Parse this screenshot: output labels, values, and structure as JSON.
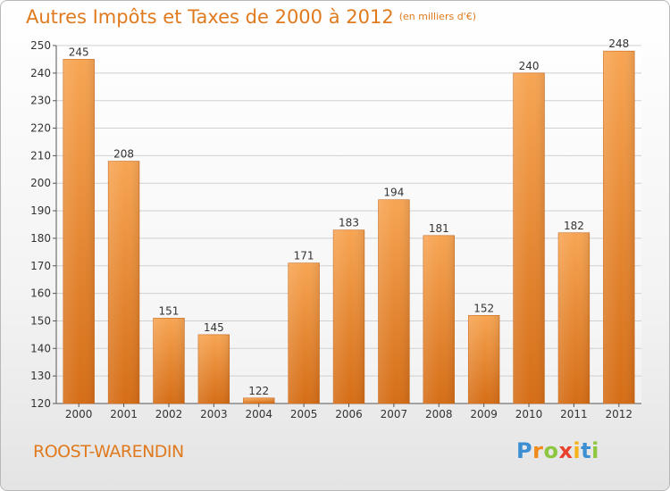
{
  "title": "Autres Impôts et Taxes de 2000 à 2012",
  "subtitle": "(en milliers d'€)",
  "location": "ROOST-WARENDIN",
  "brand": {
    "text": "Proxiti",
    "letters": [
      {
        "ch": "P",
        "color": "#3c8fd2"
      },
      {
        "ch": "r",
        "color": "#f08a1c"
      },
      {
        "ch": "o",
        "color": "#8dc63f"
      },
      {
        "ch": "x",
        "color": "#e8412c"
      },
      {
        "ch": "i",
        "color": "#f6b21b"
      },
      {
        "ch": "t",
        "color": "#3c8fd2"
      },
      {
        "ch": "i",
        "color": "#8dc63f"
      }
    ]
  },
  "colors": {
    "accent": "#e07a1e",
    "bar_top": "#f7a553",
    "bar_bottom": "#d56d16",
    "grid": "#d0d0d0",
    "axis": "#555555"
  },
  "chart_data": {
    "type": "bar",
    "categories": [
      "2000",
      "2001",
      "2002",
      "2003",
      "2004",
      "2005",
      "2006",
      "2007",
      "2008",
      "2009",
      "2010",
      "2011",
      "2012"
    ],
    "values": [
      245,
      208,
      151,
      145,
      122,
      171,
      183,
      194,
      181,
      152,
      240,
      182,
      248
    ],
    "ylim": [
      120,
      250
    ],
    "yticks": [
      120,
      130,
      140,
      150,
      160,
      170,
      180,
      190,
      200,
      210,
      220,
      230,
      240,
      250
    ],
    "grid": true,
    "legend": "none"
  }
}
